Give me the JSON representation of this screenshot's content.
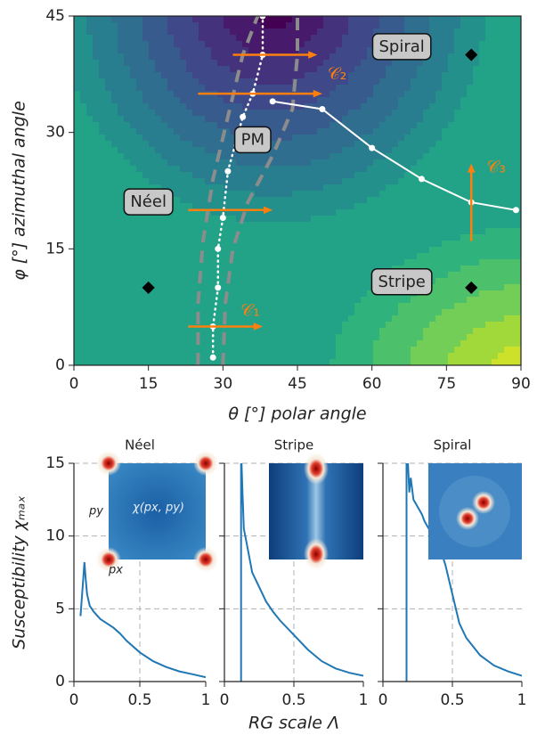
{
  "chart_data": [
    {
      "type": "phase",
      "xlabel": "θ [°] polar angle",
      "ylabel": "φ [°] azimuthal angle",
      "xlim": [
        0,
        90
      ],
      "ylim": [
        0,
        45
      ],
      "xticks": [
        0,
        15,
        30,
        45,
        60,
        75,
        90
      ],
      "yticks": [
        0,
        15,
        30,
        45
      ],
      "lines": [
        {
          "style": "dashed",
          "color": "#8c8c8c",
          "x": [
            25,
            25,
            26,
            28,
            31,
            34,
            37
          ],
          "y": [
            0,
            8,
            16,
            24,
            32,
            40,
            45
          ]
        },
        {
          "style": "dashed",
          "color": "#8c8c8c",
          "x": [
            30,
            30.5,
            32,
            35,
            40,
            44,
            45,
            45
          ],
          "y": [
            0,
            8,
            15,
            21,
            27,
            33,
            40,
            45
          ]
        },
        {
          "style": "dotted",
          "color": "#ffffff",
          "markers": true,
          "x": [
            28,
            28,
            29,
            29,
            30,
            31,
            34,
            36,
            38,
            38
          ],
          "y": [
            1,
            5,
            10,
            15,
            19,
            25,
            32,
            35,
            40,
            45
          ]
        },
        {
          "style": "solid",
          "color": "#ffffff",
          "markers": true,
          "x": [
            40,
            50,
            60,
            70,
            80,
            89
          ],
          "y": [
            34,
            33,
            28,
            24,
            21,
            20
          ]
        }
      ],
      "points": {
        "color": "#000000",
        "x": [
          15,
          80,
          80
        ],
        "y": [
          10,
          10,
          40
        ]
      },
      "arrows": {
        "color": "#ff7f0e",
        "items": [
          {
            "x": [
              23,
              38
            ],
            "y": [
              5,
              5
            ]
          },
          {
            "x": [
              23,
              40
            ],
            "y": [
              20,
              20
            ]
          },
          {
            "x": [
              25,
              50
            ],
            "y": [
              35,
              35
            ]
          },
          {
            "x": [
              32,
              49
            ],
            "y": [
              40,
              40
            ]
          },
          {
            "x": [
              80,
              80
            ],
            "y": [
              16,
              26
            ]
          }
        ]
      },
      "labels": [
        {
          "text": "Spiral",
          "x": 66,
          "y": 41,
          "boxed": true
        },
        {
          "text": "PM",
          "x": 36,
          "y": 29,
          "boxed": true
        },
        {
          "text": "Néel",
          "x": 15,
          "y": 21,
          "boxed": true
        },
        {
          "text": "Stripe",
          "x": 66,
          "y": 10.7,
          "boxed": true
        },
        {
          "text": "𝒞₁",
          "x": 35.5,
          "y": 7,
          "boxed": false,
          "color": "#ff7f0e"
        },
        {
          "text": "𝒞₂",
          "x": 53,
          "y": 37.5,
          "boxed": false,
          "color": "#ff7f0e"
        },
        {
          "text": "𝒞₃",
          "x": 85,
          "y": 25.5,
          "boxed": false,
          "color": "#ff7f0e"
        }
      ]
    },
    {
      "type": "line",
      "title": "Néel",
      "ylabel": "Susceptibility χₘₐₓ",
      "xlim": [
        0,
        1
      ],
      "ylim": [
        0,
        15
      ],
      "xticks": [
        0,
        0.5,
        1
      ],
      "yticks": [
        0,
        5,
        10,
        15
      ],
      "show_ytick_labels": true,
      "inset_labels": [
        "py",
        "px",
        "χ(px, py)"
      ],
      "color": "#1f77b4",
      "x": [
        0.05,
        0.07,
        0.08,
        0.09,
        0.1,
        0.12,
        0.15,
        0.2,
        0.25,
        0.3,
        0.35,
        0.4,
        0.5,
        0.6,
        0.7,
        0.8,
        0.9,
        1.0
      ],
      "y": [
        4.5,
        7,
        8.2,
        7,
        6,
        5.2,
        4.8,
        4.3,
        4,
        3.7,
        3.3,
        2.8,
        2,
        1.4,
        1,
        0.7,
        0.5,
        0.3
      ]
    },
    {
      "type": "line",
      "title": "Stripe",
      "xlabel": "RG scale Λ",
      "xlim": [
        0,
        1
      ],
      "ylim": [
        0,
        15
      ],
      "xticks": [
        0,
        0.5,
        1
      ],
      "yticks": [
        0,
        5,
        10,
        15
      ],
      "show_ytick_labels": false,
      "color": "#1f77b4",
      "x": [
        0.12,
        0.12,
        0.13,
        0.14,
        0.16,
        0.18,
        0.2,
        0.25,
        0.3,
        0.35,
        0.4,
        0.5,
        0.6,
        0.7,
        0.8,
        0.9,
        1.0
      ],
      "y": [
        0,
        16,
        13,
        10.5,
        9.5,
        8.5,
        7.5,
        6.5,
        5.5,
        4.8,
        4.2,
        3.2,
        2.2,
        1.4,
        0.9,
        0.6,
        0.4
      ]
    },
    {
      "type": "line",
      "title": "Spiral",
      "xlim": [
        0,
        1
      ],
      "ylim": [
        0,
        15
      ],
      "xticks": [
        0,
        0.5,
        1
      ],
      "yticks": [
        0,
        5,
        10,
        15
      ],
      "show_ytick_labels": false,
      "color": "#1f77b4",
      "x": [
        0.17,
        0.17,
        0.18,
        0.19,
        0.2,
        0.22,
        0.25,
        0.28,
        0.3,
        0.33,
        0.36,
        0.4,
        0.45,
        0.5,
        0.55,
        0.6,
        0.7,
        0.8,
        0.9,
        1.0
      ],
      "y": [
        0,
        16,
        15,
        13,
        14,
        12.5,
        12,
        11.5,
        11,
        10.5,
        10,
        9.5,
        8,
        6,
        4,
        3,
        1.8,
        1.1,
        0.7,
        0.4
      ]
    }
  ]
}
